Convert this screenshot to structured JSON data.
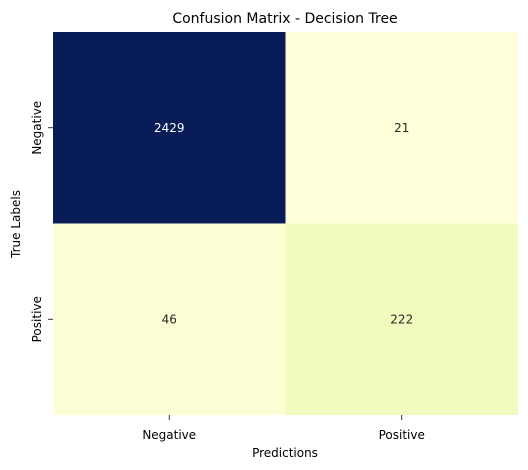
{
  "chart_data": {
    "type": "heatmap",
    "title": "Confusion Matrix - Decision Tree",
    "xlabel": "Predictions",
    "ylabel": "True Labels",
    "x_categories": [
      "Negative",
      "Positive"
    ],
    "y_categories": [
      "Negative",
      "Positive"
    ],
    "values": [
      [
        2429,
        21
      ],
      [
        46,
        222
      ]
    ],
    "colormap": "YlGnBu",
    "color_scale": {
      "min_color": "#ffffd9",
      "mid_color": "#eff9bd",
      "max_color": "#081d58"
    },
    "text_dark_color": "#262626",
    "text_light_color": "#ffffff",
    "colorbar": false,
    "grid": false
  }
}
